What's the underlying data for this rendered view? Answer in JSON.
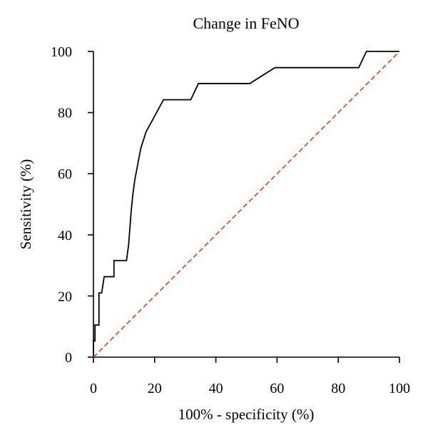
{
  "chart_data": {
    "type": "line",
    "title": "Change in FeNO",
    "xlabel": "100% - specificity (%)",
    "ylabel": "Sensitivity (%)",
    "xlim": [
      0,
      100
    ],
    "ylim": [
      0,
      100
    ],
    "xticks": [
      0,
      20,
      40,
      60,
      80,
      100
    ],
    "yticks": [
      0,
      20,
      40,
      60,
      80,
      100
    ],
    "grid": false,
    "legend": "none",
    "series": [
      {
        "color": "#000000",
        "style": "solid",
        "x": [
          0,
          0,
          0.5,
          0.5,
          1,
          1,
          1.8,
          1.8,
          2.7,
          3.5,
          3.5,
          6.7,
          6.7,
          7.5,
          10.8,
          11.5,
          12.3,
          12.8,
          13.5,
          14.5,
          15.5,
          17.2,
          22.9,
          31.8,
          34.3,
          51.1,
          59.3,
          86.7,
          89.2,
          100
        ],
        "y": [
          0,
          5.3,
          5.3,
          10.5,
          10.5,
          10.5,
          10.5,
          21,
          21,
          26.3,
          26.3,
          26.3,
          31.6,
          31.6,
          31.6,
          36.8,
          47.4,
          52.6,
          57.9,
          63.2,
          68.4,
          73.7,
          84.2,
          84.2,
          89.5,
          89.5,
          94.7,
          94.7,
          100,
          100
        ]
      },
      {
        "color": "#d9411e",
        "style": "dashed",
        "x": [
          0,
          100
        ],
        "y": [
          0,
          100
        ]
      }
    ]
  }
}
